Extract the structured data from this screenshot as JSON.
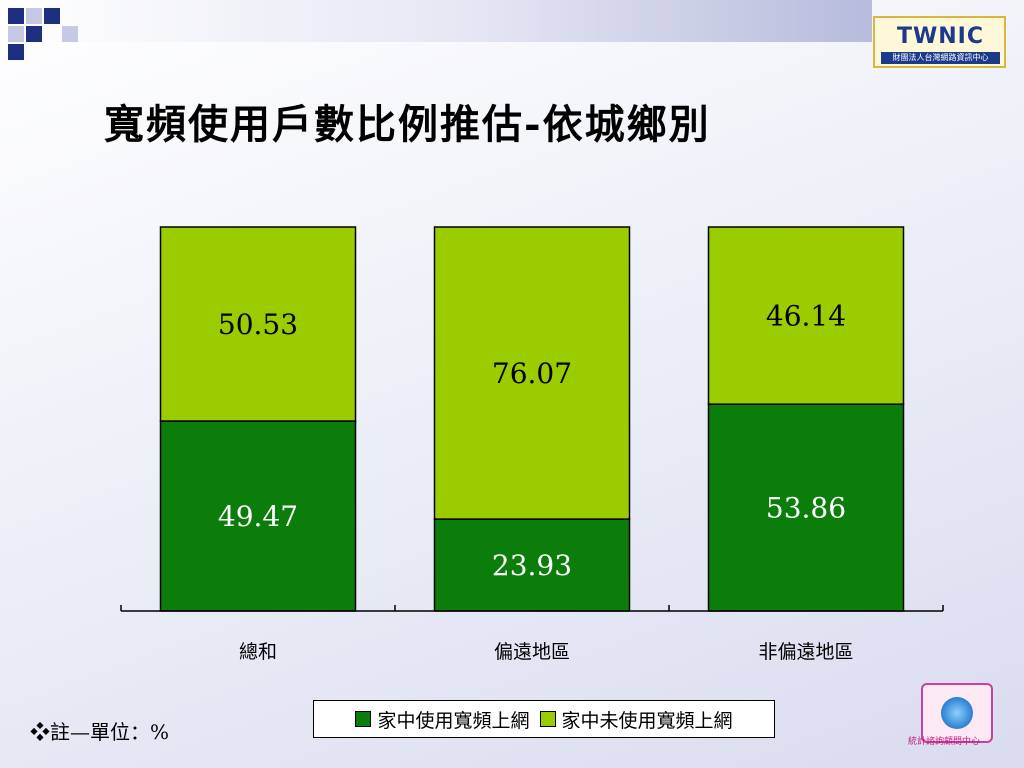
{
  "title": "寬頻使用戶數比例推估-依城鄉別",
  "logo_top": {
    "mark": "TWNIC",
    "subtitle": "財團法人台灣網路資訊中心"
  },
  "logo_bottom": {
    "caption": "統計諮詢顧問中心"
  },
  "note": "❖註—單位：%",
  "colors": {
    "used": "#0b7d0b",
    "not_used": "#9acc00",
    "accent_square": "#1f2f7f"
  },
  "chart_data": {
    "type": "bar",
    "stacked": true,
    "percent": true,
    "categories": [
      "總和",
      "偏遠地區",
      "非偏遠地區"
    ],
    "series": [
      {
        "name": "家中使用寬頻上網",
        "values": [
          49.47,
          23.93,
          53.86
        ],
        "color": "#0b7d0b"
      },
      {
        "name": "家中未使用寬頻上網",
        "values": [
          50.53,
          76.07,
          46.14
        ],
        "color": "#9acc00"
      }
    ],
    "ylim": [
      0,
      100
    ],
    "grid": false,
    "legend_position": "bottom",
    "data_labels": true
  }
}
